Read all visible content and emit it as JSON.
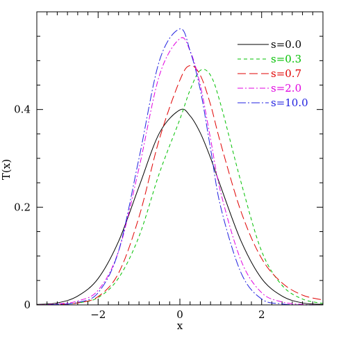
{
  "chart_data": {
    "type": "line",
    "xlabel": "x",
    "ylabel": "T(x)",
    "xlim": [
      -3.5,
      3.5
    ],
    "ylim": [
      0,
      0.6
    ],
    "grid": false,
    "legend_position": "top-right",
    "x_ticks": [
      {
        "value": -2,
        "label": "−2"
      },
      {
        "value": 0,
        "label": "0"
      },
      {
        "value": 2,
        "label": "2"
      }
    ],
    "y_ticks": [
      {
        "value": 0,
        "label": "0"
      },
      {
        "value": 0.2,
        "label": "0.2"
      },
      {
        "value": 0.4,
        "label": "0.4"
      }
    ],
    "x": [
      -3.5,
      -3.0,
      -2.5,
      -2.0,
      -1.5,
      -1.0,
      -0.5,
      0.0,
      0.25,
      0.5,
      0.75,
      1.0,
      1.5,
      2.0,
      2.5,
      3.0,
      3.5
    ],
    "series": [
      {
        "name": "s=0.0",
        "color": "#000000",
        "dash": "none",
        "values": [
          0.001,
          0.004,
          0.018,
          0.054,
          0.13,
          0.242,
          0.352,
          0.399,
          0.387,
          0.352,
          0.301,
          0.242,
          0.13,
          0.054,
          0.018,
          0.004,
          0.001
        ]
      },
      {
        "name": "s=0.3",
        "color": "#00c000",
        "dash": "5,4",
        "values": [
          0.0,
          0.001,
          0.004,
          0.015,
          0.055,
          0.14,
          0.27,
          0.38,
          0.44,
          0.48,
          0.47,
          0.41,
          0.25,
          0.11,
          0.04,
          0.012,
          0.003
        ]
      },
      {
        "name": "s=0.7",
        "color": "#e00000",
        "dash": "12,5",
        "values": [
          0.0,
          0.001,
          0.004,
          0.017,
          0.065,
          0.18,
          0.34,
          0.46,
          0.49,
          0.47,
          0.41,
          0.33,
          0.19,
          0.095,
          0.045,
          0.02,
          0.01
        ]
      },
      {
        "name": "s=2.0",
        "color": "#e000e0",
        "dash": "8,3,2,3",
        "values": [
          0.0,
          0.002,
          0.008,
          0.03,
          0.11,
          0.28,
          0.47,
          0.545,
          0.52,
          0.45,
          0.34,
          0.23,
          0.09,
          0.025,
          0.006,
          0.001,
          0.0
        ]
      },
      {
        "name": "s=10.0",
        "color": "#2020e0",
        "dash": "12,3,2,3",
        "values": [
          0.0,
          0.001,
          0.005,
          0.025,
          0.11,
          0.3,
          0.5,
          0.565,
          0.52,
          0.44,
          0.32,
          0.2,
          0.065,
          0.012,
          0.002,
          0.0,
          0.0
        ]
      }
    ]
  }
}
